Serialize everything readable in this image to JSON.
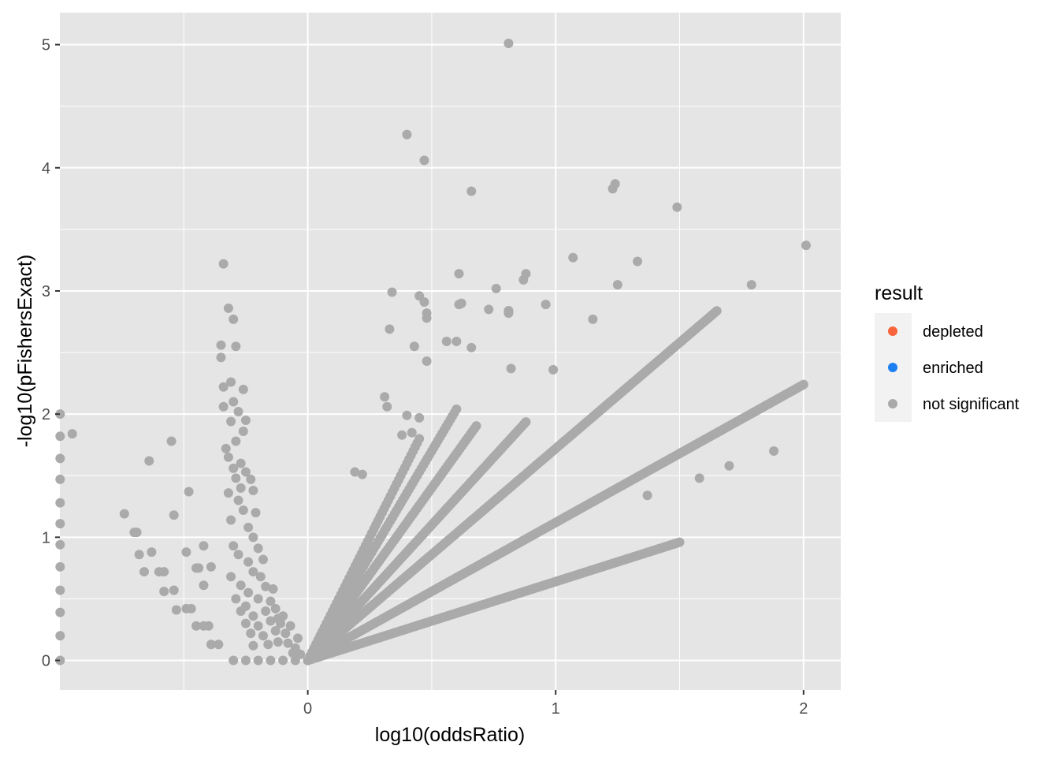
{
  "chart_data": {
    "type": "scatter",
    "title": "",
    "xlabel": "log10(oddsRatio)",
    "ylabel": "-log10(pFishersExact)",
    "xlim": [
      -1.0,
      2.15
    ],
    "ylim": [
      -0.24,
      5.26
    ],
    "x_ticks": [
      0,
      1,
      2
    ],
    "x_tick_labels": [
      "0",
      "1",
      "2"
    ],
    "y_ticks": [
      0,
      1,
      2,
      3,
      4,
      5
    ],
    "y_tick_labels": [
      "0",
      "1",
      "2",
      "3",
      "4",
      "5"
    ],
    "x_minor_ticks": [
      -0.5,
      0.5,
      1.5
    ],
    "y_minor_ticks": [
      0.5,
      1.5,
      2.5,
      3.5,
      4.5
    ],
    "grid": true,
    "panel_background": "#e5e5e5",
    "grid_color": "#ffffff",
    "legend": {
      "title": "result",
      "position": "right",
      "entries": [
        {
          "label": "depleted",
          "color": "#f8643c"
        },
        {
          "label": "enriched",
          "color": "#1e7ff3"
        },
        {
          "label": "not significant",
          "color": "#aaaaaa"
        }
      ]
    },
    "series": [
      {
        "name": "not significant",
        "color": "#aaaaaa",
        "points": [
          [
            0.81,
            5.01
          ],
          [
            0.4,
            4.27
          ],
          [
            0.47,
            4.06
          ],
          [
            0.66,
            3.81
          ],
          [
            1.24,
            3.87
          ],
          [
            1.23,
            3.83
          ],
          [
            1.49,
            3.68
          ],
          [
            2.01,
            3.37
          ],
          [
            1.07,
            3.27
          ],
          [
            1.33,
            3.24
          ],
          [
            0.61,
            3.14
          ],
          [
            0.88,
            3.14
          ],
          [
            0.87,
            3.09
          ],
          [
            1.25,
            3.05
          ],
          [
            1.79,
            3.05
          ],
          [
            0.76,
            3.02
          ],
          [
            0.34,
            2.99
          ],
          [
            0.45,
            2.96
          ],
          [
            0.47,
            2.91
          ],
          [
            0.62,
            2.9
          ],
          [
            0.61,
            2.89
          ],
          [
            0.96,
            2.89
          ],
          [
            0.73,
            2.85
          ],
          [
            0.81,
            2.84
          ],
          [
            0.48,
            2.82
          ],
          [
            0.81,
            2.82
          ],
          [
            0.48,
            2.78
          ],
          [
            1.15,
            2.77
          ],
          [
            0.33,
            2.69
          ],
          [
            0.6,
            2.59
          ],
          [
            0.56,
            2.59
          ],
          [
            0.66,
            2.54
          ],
          [
            0.43,
            2.55
          ],
          [
            0.82,
            2.37
          ],
          [
            0.99,
            2.36
          ],
          [
            0.48,
            2.43
          ],
          [
            0.31,
            2.14
          ],
          [
            0.32,
            2.06
          ],
          [
            0.4,
            1.99
          ],
          [
            0.45,
            1.97
          ],
          [
            0.42,
            1.85
          ],
          [
            0.38,
            1.83
          ],
          [
            0.19,
            1.53
          ],
          [
            0.22,
            1.51
          ],
          [
            1.58,
            1.48
          ],
          [
            1.7,
            1.58
          ],
          [
            1.88,
            1.7
          ],
          [
            1.37,
            1.34
          ],
          [
            -0.34,
            3.22
          ],
          [
            -0.32,
            2.86
          ],
          [
            -0.3,
            2.77
          ],
          [
            -0.35,
            2.56
          ],
          [
            -0.29,
            2.55
          ],
          [
            -0.35,
            2.46
          ],
          [
            -0.31,
            2.26
          ],
          [
            -0.34,
            2.22
          ],
          [
            -0.26,
            2.2
          ],
          [
            -0.34,
            2.06
          ],
          [
            -0.25,
            1.95
          ],
          [
            -0.95,
            1.84
          ],
          [
            -0.55,
            1.78
          ],
          [
            -1.0,
            2.0
          ],
          [
            -1.0,
            1.82
          ],
          [
            -1.0,
            1.64
          ],
          [
            -0.64,
            1.62
          ],
          [
            -0.48,
            1.37
          ],
          [
            -0.74,
            1.19
          ],
          [
            -0.54,
            1.18
          ],
          [
            -0.69,
            1.04
          ],
          [
            -0.7,
            1.04
          ],
          [
            -0.42,
            0.93
          ],
          [
            -0.49,
            0.88
          ],
          [
            -0.63,
            0.88
          ],
          [
            -0.68,
            0.86
          ],
          [
            -0.66,
            0.72
          ],
          [
            -0.58,
            0.72
          ],
          [
            -0.6,
            0.72
          ],
          [
            -0.44,
            0.75
          ],
          [
            -0.45,
            0.75
          ],
          [
            -0.39,
            0.76
          ],
          [
            -0.58,
            0.56
          ],
          [
            -0.54,
            0.57
          ],
          [
            -0.42,
            0.61
          ],
          [
            -0.53,
            0.41
          ],
          [
            -0.49,
            0.42
          ],
          [
            -0.47,
            0.42
          ],
          [
            -0.45,
            0.28
          ],
          [
            -0.42,
            0.28
          ],
          [
            -0.4,
            0.28
          ],
          [
            -0.39,
            0.13
          ],
          [
            -0.36,
            0.13
          ],
          [
            -1.0,
            1.47
          ],
          [
            -1.0,
            1.28
          ],
          [
            -1.0,
            1.11
          ],
          [
            -1.0,
            0.94
          ],
          [
            -1.0,
            0.76
          ],
          [
            -1.0,
            0.57
          ],
          [
            -1.0,
            0.39
          ],
          [
            -1.0,
            0.2
          ],
          [
            -1.0,
            0.0
          ],
          [
            -0.33,
            1.72
          ],
          [
            -0.32,
            1.65
          ],
          [
            -0.3,
            1.56
          ],
          [
            -0.29,
            1.48
          ],
          [
            -0.27,
            1.4
          ],
          [
            -0.25,
            1.53
          ],
          [
            -0.23,
            1.47
          ],
          [
            -0.32,
            1.36
          ],
          [
            -0.28,
            1.3
          ],
          [
            -0.26,
            1.22
          ],
          [
            -0.31,
            1.14
          ],
          [
            -0.24,
            1.08
          ],
          [
            -0.22,
            1.0
          ],
          [
            -0.3,
            0.93
          ],
          [
            -0.28,
            0.86
          ],
          [
            -0.2,
            0.91
          ],
          [
            -0.24,
            0.8
          ],
          [
            -0.22,
            0.72
          ],
          [
            -0.31,
            0.68
          ],
          [
            -0.27,
            0.61
          ],
          [
            -0.19,
            0.68
          ],
          [
            -0.24,
            0.55
          ],
          [
            -0.17,
            0.6
          ],
          [
            -0.29,
            0.5
          ],
          [
            -0.25,
            0.44
          ],
          [
            -0.2,
            0.5
          ],
          [
            -0.15,
            0.48
          ],
          [
            -0.27,
            0.4
          ],
          [
            -0.22,
            0.36
          ],
          [
            -0.17,
            0.4
          ],
          [
            -0.13,
            0.42
          ],
          [
            -0.25,
            0.3
          ],
          [
            -0.2,
            0.28
          ],
          [
            -0.15,
            0.32
          ],
          [
            -0.11,
            0.3
          ],
          [
            -0.23,
            0.22
          ],
          [
            -0.18,
            0.2
          ],
          [
            -0.13,
            0.24
          ],
          [
            -0.09,
            0.22
          ],
          [
            -0.22,
            0.12
          ],
          [
            -0.16,
            0.13
          ],
          [
            -0.12,
            0.15
          ],
          [
            -0.08,
            0.14
          ],
          [
            -0.05,
            0.1
          ],
          [
            -0.03,
            0.05
          ],
          [
            -0.3,
            0.0
          ],
          [
            -0.25,
            0.0
          ],
          [
            -0.2,
            0.0
          ],
          [
            -0.15,
            0.0
          ],
          [
            -0.1,
            0.0
          ],
          [
            -0.05,
            0.0
          ],
          [
            0.0,
            0.0
          ],
          [
            -0.04,
            0.18
          ],
          [
            -0.07,
            0.28
          ],
          [
            -0.1,
            0.36
          ],
          [
            -0.06,
            0.06
          ],
          [
            -0.3,
            2.1
          ],
          [
            -0.28,
            2.02
          ],
          [
            -0.31,
            1.94
          ],
          [
            -0.26,
            1.86
          ],
          [
            -0.29,
            1.78
          ],
          [
            -0.27,
            1.6
          ],
          [
            -0.22,
            1.38
          ],
          [
            -0.21,
            1.2
          ],
          [
            -0.18,
            0.82
          ],
          [
            -0.14,
            0.58
          ],
          [
            -0.12,
            0.34
          ]
        ],
        "trend_lines": [
          {
            "x_from": 0.0,
            "x_to": 1.5,
            "slope": 0.64,
            "intercept": 0.0
          },
          {
            "x_from": 0.0,
            "x_to": 2.0,
            "slope": 1.12,
            "intercept": 0.0
          },
          {
            "x_from": 0.0,
            "x_to": 0.88,
            "slope": 2.2,
            "intercept": 0.0
          },
          {
            "x_from": 0.0,
            "x_to": 1.65,
            "slope": 1.72,
            "intercept": 0.0
          },
          {
            "x_from": 0.0,
            "x_to": 0.68,
            "slope": 2.8,
            "intercept": 0.0
          },
          {
            "x_from": 0.0,
            "x_to": 0.6,
            "slope": 3.4,
            "intercept": 0.0
          },
          {
            "x_from": 0.0,
            "x_to": 0.45,
            "slope": 4.0,
            "intercept": 0.0
          }
        ]
      }
    ]
  }
}
